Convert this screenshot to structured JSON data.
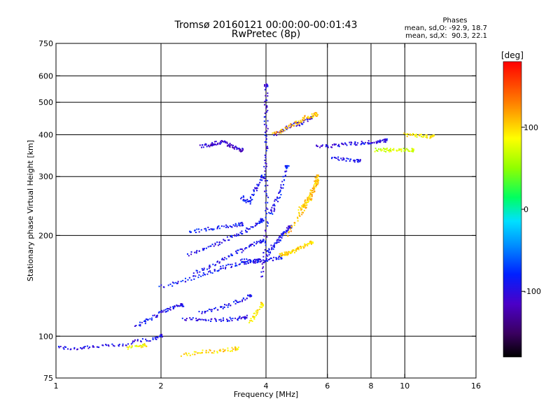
{
  "chart_data": {
    "type": "scatter",
    "title": "Tromsø 20160121 00:00:00-00:01:43",
    "subtitle": "RwPretec (8p)",
    "xlabel": "Frequency [MHz]",
    "ylabel": "Stationary phase Virtual Height [km]",
    "x_scale": "log",
    "y_scale": "log",
    "xlim": [
      1,
      16
    ],
    "ylim": [
      75,
      750
    ],
    "x_ticks": [
      1,
      2,
      4,
      6,
      8,
      10,
      16
    ],
    "x_tick_labels": [
      "1",
      "2",
      "4",
      "6",
      "8",
      "10",
      "16"
    ],
    "y_ticks": [
      75,
      100,
      200,
      300,
      400,
      500,
      600,
      750
    ],
    "y_tick_labels": [
      "75",
      "100",
      "200",
      "300",
      "400",
      "500",
      "600",
      "750"
    ],
    "x_grid": [
      2,
      4,
      6,
      8,
      10
    ],
    "y_grid": [
      100,
      200,
      300,
      400,
      500,
      600
    ],
    "grid": true,
    "phases": {
      "heading": "Phases",
      "line_o": "mean, sd,O: -92.9, 18.7",
      "line_x": "mean, sd,X:  90.3, 22.1"
    },
    "colorbar": {
      "label": "[deg]",
      "range": [
        -180,
        180
      ],
      "ticks": [
        100,
        0,
        -100
      ],
      "tick_labels": [
        "100",
        "0",
        "-100"
      ],
      "colormap": "rainbow",
      "placement": "right"
    },
    "traces": [
      {
        "name": "",
        "phase": -95,
        "x": [
          1.0,
          1.1,
          1.2,
          1.3,
          1.45,
          1.6,
          1.75,
          1.9,
          2.0
        ],
        "y": [
          93,
          92,
          92,
          93,
          94,
          95,
          97,
          98,
          100
        ]
      },
      {
        "name": "",
        "phase": -92,
        "x": [
          1.7,
          1.8,
          1.9,
          2.0,
          2.1,
          2.2,
          2.3
        ],
        "y": [
          108,
          110,
          114,
          118,
          120,
          122,
          124
        ]
      },
      {
        "name": "",
        "phase": -88,
        "x": [
          2.0,
          2.2,
          2.4,
          2.6,
          2.8,
          3.0,
          3.2,
          3.4,
          3.6,
          3.8
        ],
        "y": [
          140,
          144,
          148,
          152,
          156,
          160,
          163,
          165,
          167,
          168
        ]
      },
      {
        "name": "",
        "phase": -90,
        "x": [
          2.5,
          2.7,
          2.9,
          3.1,
          3.3,
          3.5,
          3.7,
          3.9
        ],
        "y": [
          155,
          160,
          166,
          172,
          178,
          183,
          188,
          193
        ]
      },
      {
        "name": "",
        "phase": -93,
        "x": [
          2.4,
          2.6,
          2.8,
          3.0,
          3.2,
          3.4,
          3.6,
          3.8,
          3.9
        ],
        "y": [
          175,
          180,
          186,
          192,
          198,
          204,
          210,
          218,
          222
        ]
      },
      {
        "name": "",
        "phase": -85,
        "x": [
          2.4,
          2.6,
          2.8,
          3.0,
          3.2,
          3.4
        ],
        "y": [
          205,
          207,
          210,
          212,
          214,
          216
        ]
      },
      {
        "name": "",
        "phase": -95,
        "x": [
          2.3,
          2.5,
          2.7,
          2.9,
          3.1,
          3.3,
          3.5
        ],
        "y": [
          113,
          112,
          112,
          112,
          112,
          113,
          114
        ]
      },
      {
        "name": "",
        "phase": -90,
        "x": [
          2.6,
          2.8,
          3.0,
          3.2,
          3.4,
          3.6
        ],
        "y": [
          118,
          120,
          122,
          125,
          128,
          132
        ]
      },
      {
        "name": "",
        "phase": -92,
        "x": [
          3.4,
          3.6,
          3.8,
          4.0,
          4.2,
          4.4
        ],
        "y": [
          168,
          168,
          168,
          169,
          170,
          172
        ]
      },
      {
        "name": "",
        "phase": -95,
        "x": [
          3.9,
          3.95,
          4.0,
          4.02,
          4.0,
          3.98,
          4.0,
          4.02,
          4.0,
          4.0,
          4.0
        ],
        "y": [
          150,
          170,
          200,
          240,
          280,
          320,
          360,
          400,
          450,
          500,
          560
        ]
      },
      {
        "name": "",
        "phase": -90,
        "x": [
          3.4,
          3.5,
          3.6,
          3.7,
          3.8,
          3.9
        ],
        "y": [
          260,
          255,
          250,
          270,
          280,
          300
        ]
      },
      {
        "name": "",
        "phase": -93,
        "x": [
          4.0,
          4.1,
          4.2,
          4.3,
          4.4,
          4.5,
          4.6,
          4.7
        ],
        "y": [
          175,
          180,
          186,
          192,
          198,
          203,
          208,
          212
        ]
      },
      {
        "name": "",
        "phase": -90,
        "x": [
          4.1,
          4.2,
          4.3,
          4.4,
          4.5,
          4.6
        ],
        "y": [
          230,
          240,
          255,
          270,
          290,
          320
        ]
      },
      {
        "name": "",
        "phase": -110,
        "x": [
          2.6,
          2.7,
          2.8,
          2.9,
          3.0,
          3.1,
          3.2,
          3.3,
          3.4
        ],
        "y": [
          370,
          372,
          375,
          378,
          380,
          375,
          370,
          365,
          360
        ]
      },
      {
        "name": "",
        "phase": -100,
        "x": [
          4.2,
          4.4,
          4.6,
          4.8,
          5.0,
          5.2,
          5.4
        ],
        "y": [
          400,
          410,
          420,
          430,
          430,
          440,
          450
        ]
      },
      {
        "name": "",
        "phase": -95,
        "x": [
          5.6,
          6.0,
          6.4,
          6.8,
          7.2,
          7.6,
          8.0,
          8.4,
          8.8
        ],
        "y": [
          368,
          370,
          372,
          375,
          376,
          378,
          380,
          382,
          384
        ]
      },
      {
        "name": "",
        "phase": -90,
        "x": [
          6.2,
          6.6,
          7.0,
          7.4
        ],
        "y": [
          340,
          338,
          336,
          334
        ]
      },
      {
        "name": "",
        "phase": 100,
        "x": [
          4.4,
          4.5,
          4.6,
          4.7,
          4.8,
          4.9,
          5.0,
          5.2,
          5.4
        ],
        "y": [
          175,
          176,
          177,
          178,
          180,
          182,
          184,
          187,
          190
        ]
      },
      {
        "name": "",
        "phase": 110,
        "x": [
          4.6,
          4.8,
          5.0,
          5.2,
          5.4,
          5.5,
          5.6
        ],
        "y": [
          200,
          215,
          230,
          245,
          260,
          280,
          300
        ]
      },
      {
        "name": "",
        "phase": 105,
        "x": [
          5.0,
          5.1,
          5.2,
          5.3,
          5.4,
          5.5,
          5.6
        ],
        "y": [
          240,
          245,
          252,
          260,
          270,
          280,
          290
        ]
      },
      {
        "name": "",
        "phase": 95,
        "x": [
          3.6,
          3.7,
          3.8,
          3.9
        ],
        "y": [
          110,
          115,
          120,
          125
        ]
      },
      {
        "name": "",
        "phase": 110,
        "x": [
          4.2,
          4.4,
          4.6,
          4.8,
          5.0,
          5.2,
          5.4,
          5.6
        ],
        "y": [
          400,
          410,
          420,
          430,
          440,
          450,
          455,
          460
        ]
      },
      {
        "name": "",
        "phase": 70,
        "x": [
          8.2,
          8.6,
          9.0,
          9.5,
          10.0,
          10.5
        ],
        "y": [
          360,
          360,
          360,
          360,
          360,
          360
        ]
      },
      {
        "name": "",
        "phase": 90,
        "x": [
          10.0,
          10.5,
          11.0,
          11.5,
          12.0
        ],
        "y": [
          400,
          400,
          398,
          396,
          395
        ]
      },
      {
        "name": "",
        "phase": 100,
        "x": [
          2.3,
          2.5,
          2.7,
          2.9,
          3.1,
          3.3
        ],
        "y": [
          88,
          89,
          90,
          90,
          91,
          92
        ]
      },
      {
        "name": "",
        "phase": 85,
        "x": [
          1.6,
          1.7,
          1.8
        ],
        "y": [
          92,
          93,
          94
        ]
      }
    ]
  }
}
